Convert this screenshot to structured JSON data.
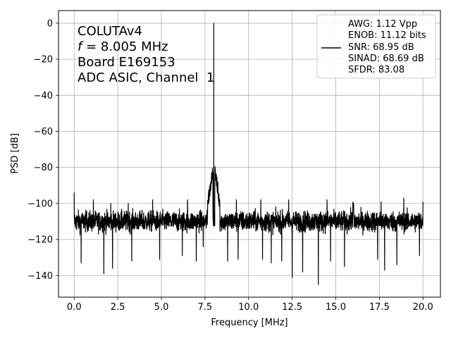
{
  "chart_data": {
    "type": "line",
    "xlabel": "Frequency [MHz]",
    "ylabel": "PSD [dB]",
    "xlim": [
      -0.9,
      21.0
    ],
    "ylim": [
      -152,
      7
    ],
    "xticks": [
      0.0,
      2.5,
      5.0,
      7.5,
      10.0,
      12.5,
      15.0,
      17.5,
      20.0
    ],
    "xtick_labels": [
      "0.0",
      "2.5",
      "5.0",
      "7.5",
      "10.0",
      "12.5",
      "15.0",
      "17.5",
      "20.0"
    ],
    "yticks": [
      0,
      -20,
      -40,
      -60,
      -80,
      -100,
      -120,
      -140
    ],
    "ytick_labels": [
      "0",
      "−20",
      "−40",
      "−60",
      "−80",
      "−100",
      "−120",
      "−140"
    ],
    "grid": true,
    "line_color": "#000000",
    "annotation": {
      "line1": "COLUTAv4",
      "line2_italic": "f",
      "line2_rest": " = 8.005 MHz",
      "line3": "Board E169153",
      "line4": "ADC ASIC, Channel  1"
    },
    "legend": {
      "position": "upper right",
      "lines": [
        "AWG: 1.12 Vpp",
        "ENOB: 11.12 bits",
        "SNR: 68.95 dB",
        "SINAD: 68.69 dB",
        "SFDR: 83.08"
      ]
    },
    "series": [
      {
        "tone_frequency": 8.005,
        "tone_peak": 0,
        "noise_floor_mean": -110,
        "noise_floor_band": [
          -125,
          -100
        ],
        "noise_dips": [
          [
            0.1,
            -108
          ],
          [
            0.4,
            -133
          ],
          [
            1.1,
            -128
          ],
          [
            1.7,
            -139
          ],
          [
            2.2,
            -136
          ],
          [
            3.3,
            -132
          ],
          [
            4.9,
            -131
          ],
          [
            6.2,
            -129
          ],
          [
            7.0,
            -132
          ],
          [
            7.4,
            -124
          ],
          [
            8.8,
            -132
          ],
          [
            9.4,
            -131
          ],
          [
            10.8,
            -131
          ],
          [
            11.3,
            -133
          ],
          [
            11.9,
            -132
          ],
          [
            12.5,
            -141
          ],
          [
            13.1,
            -138
          ],
          [
            14.0,
            -145
          ],
          [
            14.7,
            -132
          ],
          [
            15.5,
            -135
          ],
          [
            17.4,
            -131
          ],
          [
            17.8,
            -137
          ],
          [
            18.5,
            -134
          ],
          [
            19.8,
            -129
          ]
        ],
        "noise_spikes": [
          [
            0.0,
            -94
          ],
          [
            1.1,
            -98
          ],
          [
            2.1,
            -100
          ],
          [
            3.1,
            -100
          ],
          [
            4.5,
            -98
          ],
          [
            6.5,
            -98
          ],
          [
            9.3,
            -98
          ],
          [
            10.7,
            -98
          ],
          [
            12.3,
            -98
          ],
          [
            14.5,
            -98
          ],
          [
            17.6,
            -99
          ],
          [
            18.9,
            -97
          ],
          [
            20.0,
            -99
          ]
        ],
        "tone_skirt": [
          [
            7.65,
            -100
          ],
          [
            7.75,
            -94
          ],
          [
            7.85,
            -88
          ],
          [
            7.95,
            -82
          ],
          [
            8.005,
            0
          ],
          [
            8.06,
            -82
          ],
          [
            8.15,
            -86
          ],
          [
            8.25,
            -94
          ],
          [
            8.35,
            -100
          ]
        ],
        "spurs": [
          [
            16.0,
            -95
          ]
        ]
      }
    ]
  }
}
